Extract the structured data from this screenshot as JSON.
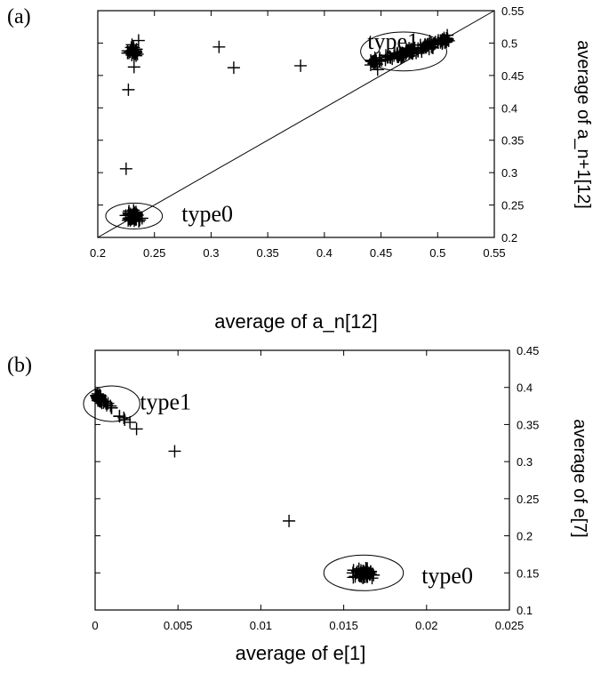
{
  "chart_data": [
    {
      "panel_label": "(a)",
      "type": "scatter",
      "xlabel": "average of a_n[12]",
      "ylabel": "average of a_n+1[12]",
      "xlim": [
        0.2,
        0.55
      ],
      "ylim": [
        0.2,
        0.55
      ],
      "x_ticks": [
        "0.2",
        "0.25",
        "0.3",
        "0.35",
        "0.4",
        "0.45",
        "0.5",
        "0.55"
      ],
      "y_ticks": [
        "0.2",
        "0.25",
        "0.3",
        "0.35",
        "0.4",
        "0.45",
        "0.5",
        "0.55"
      ],
      "diagonal_line": true,
      "marker": "+",
      "annotations": [
        {
          "text": "type1",
          "x": 0.438,
          "y": 0.503,
          "circle": {
            "cx": 0.47,
            "cy": 0.487,
            "rx": 0.038,
            "ry": 0.03
          }
        },
        {
          "text": "type0",
          "x": 0.274,
          "y": 0.237,
          "circle": {
            "cx": 0.232,
            "cy": 0.233,
            "rx": 0.025,
            "ry": 0.02
          }
        }
      ],
      "clusters": [
        {
          "cx": 0.231,
          "cy": 0.486,
          "sx": 0.004,
          "sy": 0.008,
          "n": 28
        },
        {
          "cx": 0.231,
          "cy": 0.233,
          "sx": 0.005,
          "sy": 0.006,
          "n": 55
        }
      ],
      "trends": [
        {
          "x0": 0.44,
          "y0": 0.468,
          "x1": 0.51,
          "y1": 0.506,
          "sx": 0.003,
          "sy": 0.005,
          "n": 130
        }
      ],
      "points": [
        {
          "x": 0.225,
          "y": 0.306
        },
        {
          "x": 0.227,
          "y": 0.428
        },
        {
          "x": 0.307,
          "y": 0.494
        },
        {
          "x": 0.32,
          "y": 0.462
        },
        {
          "x": 0.379,
          "y": 0.465
        },
        {
          "x": 0.232,
          "y": 0.463
        },
        {
          "x": 0.236,
          "y": 0.504
        },
        {
          "x": 0.447,
          "y": 0.459
        }
      ]
    },
    {
      "panel_label": "(b)",
      "type": "scatter",
      "xlabel": "average of e[1]",
      "ylabel": "average of e[7]",
      "xlim": [
        0,
        0.025
      ],
      "ylim": [
        0.1,
        0.45
      ],
      "x_ticks": [
        "0",
        "0.005",
        "0.01",
        "0.015",
        "0.02",
        "0.025"
      ],
      "y_ticks": [
        "0.1",
        "0.15",
        "0.2",
        "0.25",
        "0.3",
        "0.35",
        "0.4",
        "0.45"
      ],
      "diagonal_line": false,
      "marker": "+",
      "annotations": [
        {
          "text": "type1",
          "x": 0.0027,
          "y": 0.381,
          "circle": {
            "cx": 0.001,
            "cy": 0.378,
            "rx": 0.0017,
            "ry": 0.024
          }
        },
        {
          "text": "type0",
          "x": 0.0197,
          "y": 0.147,
          "circle": {
            "cx": 0.0162,
            "cy": 0.15,
            "rx": 0.0024,
            "ry": 0.024
          }
        }
      ],
      "clusters": [
        {
          "cx": 0.0162,
          "cy": 0.149,
          "sx": 0.0005,
          "sy": 0.006,
          "n": 55
        },
        {
          "cx": 0.0002,
          "cy": 0.387,
          "sx": 0.0001,
          "sy": 0.004,
          "n": 25
        }
      ],
      "trends": [
        {
          "x0": 0.0,
          "y0": 0.39,
          "x1": 0.0018,
          "y1": 0.357,
          "sx": 0.0001,
          "sy": 0.003,
          "n": 22
        }
      ],
      "points": [
        {
          "x": 0.0025,
          "y": 0.344
        },
        {
          "x": 0.0021,
          "y": 0.353
        },
        {
          "x": 0.0048,
          "y": 0.314
        },
        {
          "x": 0.0117,
          "y": 0.22
        }
      ]
    }
  ]
}
